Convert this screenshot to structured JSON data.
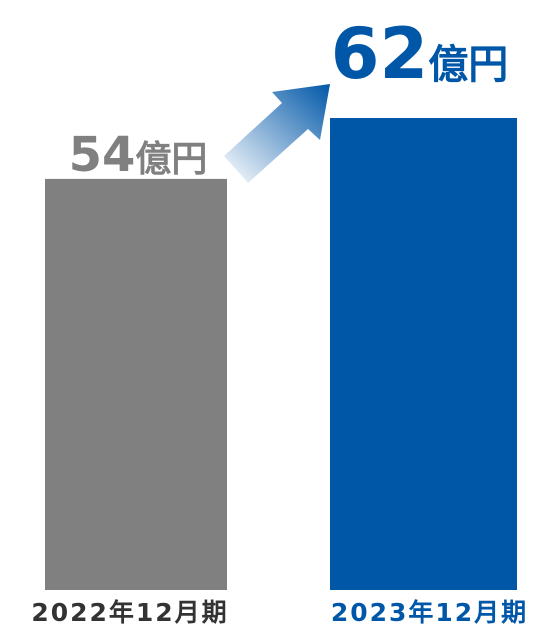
{
  "chart_data": {
    "type": "bar",
    "categories": [
      "2022年12月期",
      "2023年12月期"
    ],
    "values": [
      54,
      62
    ],
    "value_numbers": [
      "54",
      "62"
    ],
    "unit": "億円",
    "title": "",
    "xlabel": "",
    "ylabel": "",
    "ylim": [
      0,
      62
    ],
    "grid": false,
    "legend": "none",
    "bar_colors": [
      "#808080",
      "#0057a8"
    ],
    "label_colors": [
      "#808080",
      "#0057a8"
    ],
    "category_label_colors": [
      "#333333",
      "#0057a8"
    ],
    "arrow": {
      "from_category": "2022年12月期",
      "to_category": "2023年12月期",
      "color_start": "#ffffff",
      "color_end": "#0057a8"
    }
  }
}
